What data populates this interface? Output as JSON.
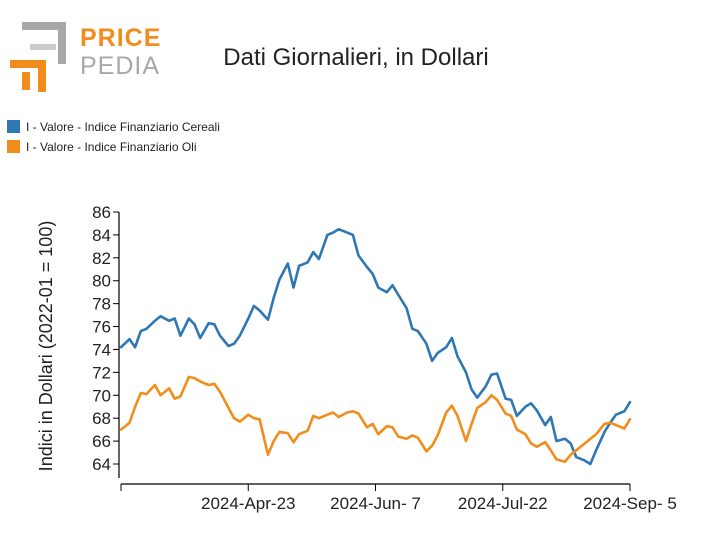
{
  "logo": {
    "word1": "PRICE",
    "word2": "PEDIA",
    "accent": "#f28c1c",
    "gray": "#a8a8a8"
  },
  "chart_data": {
    "type": "line",
    "title": "Dati Giornalieri, in Dollari",
    "ylabel": "Indici in Dollari (2022-01 = 100)",
    "xlabel": "",
    "ylim": [
      63,
      86
    ],
    "yticks": [
      64,
      66,
      68,
      70,
      72,
      74,
      76,
      78,
      80,
      82,
      84,
      86
    ],
    "xlim": [
      "2024-03-09",
      "2024-09-05"
    ],
    "xticks": [
      "2024-Apr-23",
      "2024-Jun- 7",
      "2024-Jul-22",
      "2024-Sep- 5"
    ],
    "legend_position": "top-left",
    "series": [
      {
        "name": "I - Valore - Indice Finanziario Cereali",
        "color": "#2f77b4",
        "x": [
          "2024-03-09",
          "2024-03-12",
          "2024-03-14",
          "2024-03-16",
          "2024-03-18",
          "2024-03-21",
          "2024-03-23",
          "2024-03-26",
          "2024-03-28",
          "2024-03-30",
          "2024-04-02",
          "2024-04-04",
          "2024-04-06",
          "2024-04-09",
          "2024-04-11",
          "2024-04-13",
          "2024-04-16",
          "2024-04-18",
          "2024-04-20",
          "2024-04-23",
          "2024-04-25",
          "2024-04-27",
          "2024-04-30",
          "2024-05-02",
          "2024-05-04",
          "2024-05-07",
          "2024-05-09",
          "2024-05-11",
          "2024-05-14",
          "2024-05-16",
          "2024-05-18",
          "2024-05-21",
          "2024-05-23",
          "2024-05-25",
          "2024-05-28",
          "2024-05-30",
          "2024-06-01",
          "2024-06-04",
          "2024-06-06",
          "2024-06-08",
          "2024-06-11",
          "2024-06-13",
          "2024-06-15",
          "2024-06-18",
          "2024-06-20",
          "2024-06-22",
          "2024-06-25",
          "2024-06-27",
          "2024-06-29",
          "2024-07-02",
          "2024-07-04",
          "2024-07-06",
          "2024-07-09",
          "2024-07-11",
          "2024-07-13",
          "2024-07-16",
          "2024-07-18",
          "2024-07-20",
          "2024-07-23",
          "2024-07-25",
          "2024-07-27",
          "2024-07-30",
          "2024-08-01",
          "2024-08-03",
          "2024-08-06",
          "2024-08-08",
          "2024-08-10",
          "2024-08-13",
          "2024-08-15",
          "2024-08-17",
          "2024-08-20",
          "2024-08-22",
          "2024-08-24",
          "2024-08-27",
          "2024-08-29",
          "2024-08-31",
          "2024-09-03",
          "2024-09-05"
        ],
        "values": [
          74.2,
          74.9,
          74.2,
          75.6,
          75.8,
          76.5,
          76.9,
          76.5,
          76.7,
          75.2,
          76.7,
          76.2,
          75.0,
          76.3,
          76.2,
          75.2,
          74.3,
          74.5,
          75.2,
          76.7,
          77.8,
          77.4,
          76.6,
          78.5,
          80.1,
          81.5,
          79.4,
          81.3,
          81.6,
          82.5,
          81.9,
          84.0,
          84.2,
          84.5,
          84.2,
          84.0,
          82.2,
          81.2,
          80.6,
          79.4,
          79.0,
          79.6,
          78.8,
          77.6,
          75.8,
          75.6,
          74.5,
          73.0,
          73.7,
          74.2,
          75.0,
          73.4,
          72.0,
          70.5,
          69.8,
          70.8,
          71.8,
          71.9,
          69.7,
          69.6,
          68.2,
          69.0,
          69.3,
          68.7,
          67.4,
          68.1,
          66.0,
          66.2,
          65.8,
          64.6,
          64.3,
          64.0,
          65.2,
          66.8,
          67.6,
          68.3,
          68.6,
          69.4
        ]
      },
      {
        "name": "I - Valore - Indice Finanziario Oli",
        "color": "#f28c1c",
        "x": [
          "2024-03-09",
          "2024-03-12",
          "2024-03-14",
          "2024-03-16",
          "2024-03-18",
          "2024-03-21",
          "2024-03-23",
          "2024-03-26",
          "2024-03-28",
          "2024-03-30",
          "2024-04-02",
          "2024-04-04",
          "2024-04-06",
          "2024-04-09",
          "2024-04-11",
          "2024-04-13",
          "2024-04-16",
          "2024-04-18",
          "2024-04-20",
          "2024-04-23",
          "2024-04-25",
          "2024-04-27",
          "2024-04-30",
          "2024-05-02",
          "2024-05-04",
          "2024-05-07",
          "2024-05-09",
          "2024-05-11",
          "2024-05-14",
          "2024-05-16",
          "2024-05-18",
          "2024-05-21",
          "2024-05-23",
          "2024-05-25",
          "2024-05-28",
          "2024-05-30",
          "2024-06-01",
          "2024-06-04",
          "2024-06-06",
          "2024-06-08",
          "2024-06-11",
          "2024-06-13",
          "2024-06-15",
          "2024-06-18",
          "2024-06-20",
          "2024-06-22",
          "2024-06-25",
          "2024-06-27",
          "2024-06-29",
          "2024-07-02",
          "2024-07-04",
          "2024-07-06",
          "2024-07-09",
          "2024-07-11",
          "2024-07-13",
          "2024-07-16",
          "2024-07-18",
          "2024-07-20",
          "2024-07-23",
          "2024-07-25",
          "2024-07-27",
          "2024-07-30",
          "2024-08-01",
          "2024-08-03",
          "2024-08-06",
          "2024-08-08",
          "2024-08-10",
          "2024-08-13",
          "2024-08-15",
          "2024-08-17",
          "2024-08-20",
          "2024-08-22",
          "2024-08-24",
          "2024-08-27",
          "2024-08-29",
          "2024-08-31",
          "2024-09-03",
          "2024-09-05"
        ],
        "values": [
          67.0,
          67.6,
          69.0,
          70.2,
          70.1,
          70.9,
          70.0,
          70.6,
          69.7,
          69.9,
          71.6,
          71.5,
          71.2,
          70.9,
          71.0,
          70.3,
          68.9,
          68.0,
          67.7,
          68.3,
          68.0,
          67.9,
          64.8,
          66.0,
          66.8,
          66.7,
          65.9,
          66.6,
          66.9,
          68.2,
          68.0,
          68.3,
          68.5,
          68.1,
          68.5,
          68.6,
          68.4,
          67.2,
          67.5,
          66.6,
          67.3,
          67.2,
          66.4,
          66.2,
          66.5,
          66.3,
          65.1,
          65.6,
          66.5,
          68.5,
          69.1,
          68.2,
          66.0,
          67.5,
          68.9,
          69.4,
          70.0,
          69.6,
          68.4,
          68.2,
          67.0,
          66.6,
          65.8,
          65.5,
          65.9,
          65.2,
          64.4,
          64.2,
          64.8,
          65.2,
          65.8,
          66.2,
          66.6,
          67.5,
          67.6,
          67.4,
          67.1,
          67.9
        ]
      }
    ]
  }
}
